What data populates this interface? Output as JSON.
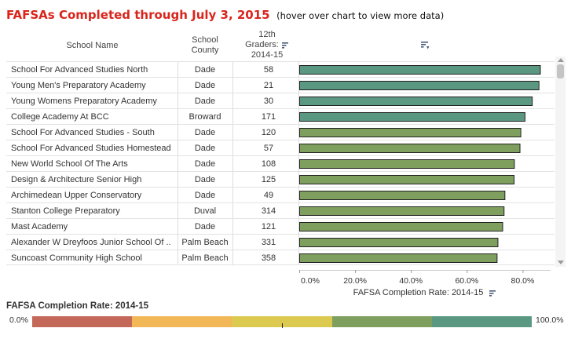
{
  "header": {
    "title": "FAFSAs Completed through July 3, 2015",
    "subtitle": "(hover over chart to view more data)"
  },
  "columns": {
    "school_name": "School Name",
    "county_line1": "School",
    "county_line2": "County",
    "grad_line1": "12th",
    "grad_line2": "Graders:",
    "grad_line3": "2014-15"
  },
  "rows": [
    {
      "school": "School For Advanced Studies North",
      "county": "Dade",
      "graders": "58"
    },
    {
      "school": "Young Men's Preparatory Academy",
      "county": "Dade",
      "graders": "21"
    },
    {
      "school": "Young Womens Preparatory Academy",
      "county": "Dade",
      "graders": "30"
    },
    {
      "school": "College Academy At BCC",
      "county": "Broward",
      "graders": "171"
    },
    {
      "school": "School For Advanced Studies - South",
      "county": "Dade",
      "graders": "120"
    },
    {
      "school": "School For Advanced Studies Homestead",
      "county": "Dade",
      "graders": "57"
    },
    {
      "school": "New World School Of The Arts",
      "county": "Dade",
      "graders": "108"
    },
    {
      "school": "Design & Architecture Senior High",
      "county": "Dade",
      "graders": "125"
    },
    {
      "school": "Archimedean Upper Conservatory",
      "county": "Dade",
      "graders": "49"
    },
    {
      "school": "Stanton College Preparatory",
      "county": "Duval",
      "graders": "314"
    },
    {
      "school": "Mast Academy",
      "county": "Dade",
      "graders": "121"
    },
    {
      "school": "Alexander W Dreyfoos Junior School Of ..",
      "county": "Palm Beach",
      "graders": "331"
    },
    {
      "school": "Suncoast Community High School",
      "county": "Palm Beach",
      "graders": "358"
    }
  ],
  "chart_data": {
    "type": "bar",
    "orientation": "horizontal",
    "categories": [
      "School For Advanced Studies North",
      "Young Men's Preparatory Academy",
      "Young Womens Preparatory Academy",
      "College Academy At BCC",
      "School For Advanced Studies - South",
      "School For Advanced Studies Homestead",
      "New World School Of The Arts",
      "Design & Architecture Senior High",
      "Archimedean Upper Conservatory",
      "Stanton College Preparatory",
      "Mast Academy",
      "Alexander W Dreyfoos Junior School Of ..",
      "Suncoast Community High School"
    ],
    "values": [
      86.2,
      85.7,
      83.3,
      80.7,
      79.2,
      78.9,
      76.9,
      76.8,
      73.5,
      73.2,
      72.7,
      71.0,
      70.7
    ],
    "xlabel": "FAFSA Completion Rate: 2014-15",
    "xlim": [
      0,
      90
    ],
    "ticks": [
      "0.0%",
      "20.0%",
      "40.0%",
      "60.0%",
      "80.0%"
    ],
    "tick_values": [
      0,
      20,
      40,
      60,
      80
    ],
    "color_scale": {
      "title": "FAFSA Completion Rate: 2014-15",
      "min_label": "0.0%",
      "max_label": "100.0%",
      "marker_value": 50.0,
      "bands": [
        {
          "from": 0,
          "to": 20,
          "color": "#c4695a"
        },
        {
          "from": 20,
          "to": 40,
          "color": "#f2b756"
        },
        {
          "from": 40,
          "to": 60,
          "color": "#dcc94f"
        },
        {
          "from": 60,
          "to": 80,
          "color": "#7e9f5e"
        },
        {
          "from": 80,
          "to": 100,
          "color": "#5a9882"
        }
      ]
    }
  },
  "colors": {
    "title": "#d9251c",
    "bar_outline": "#222222"
  }
}
